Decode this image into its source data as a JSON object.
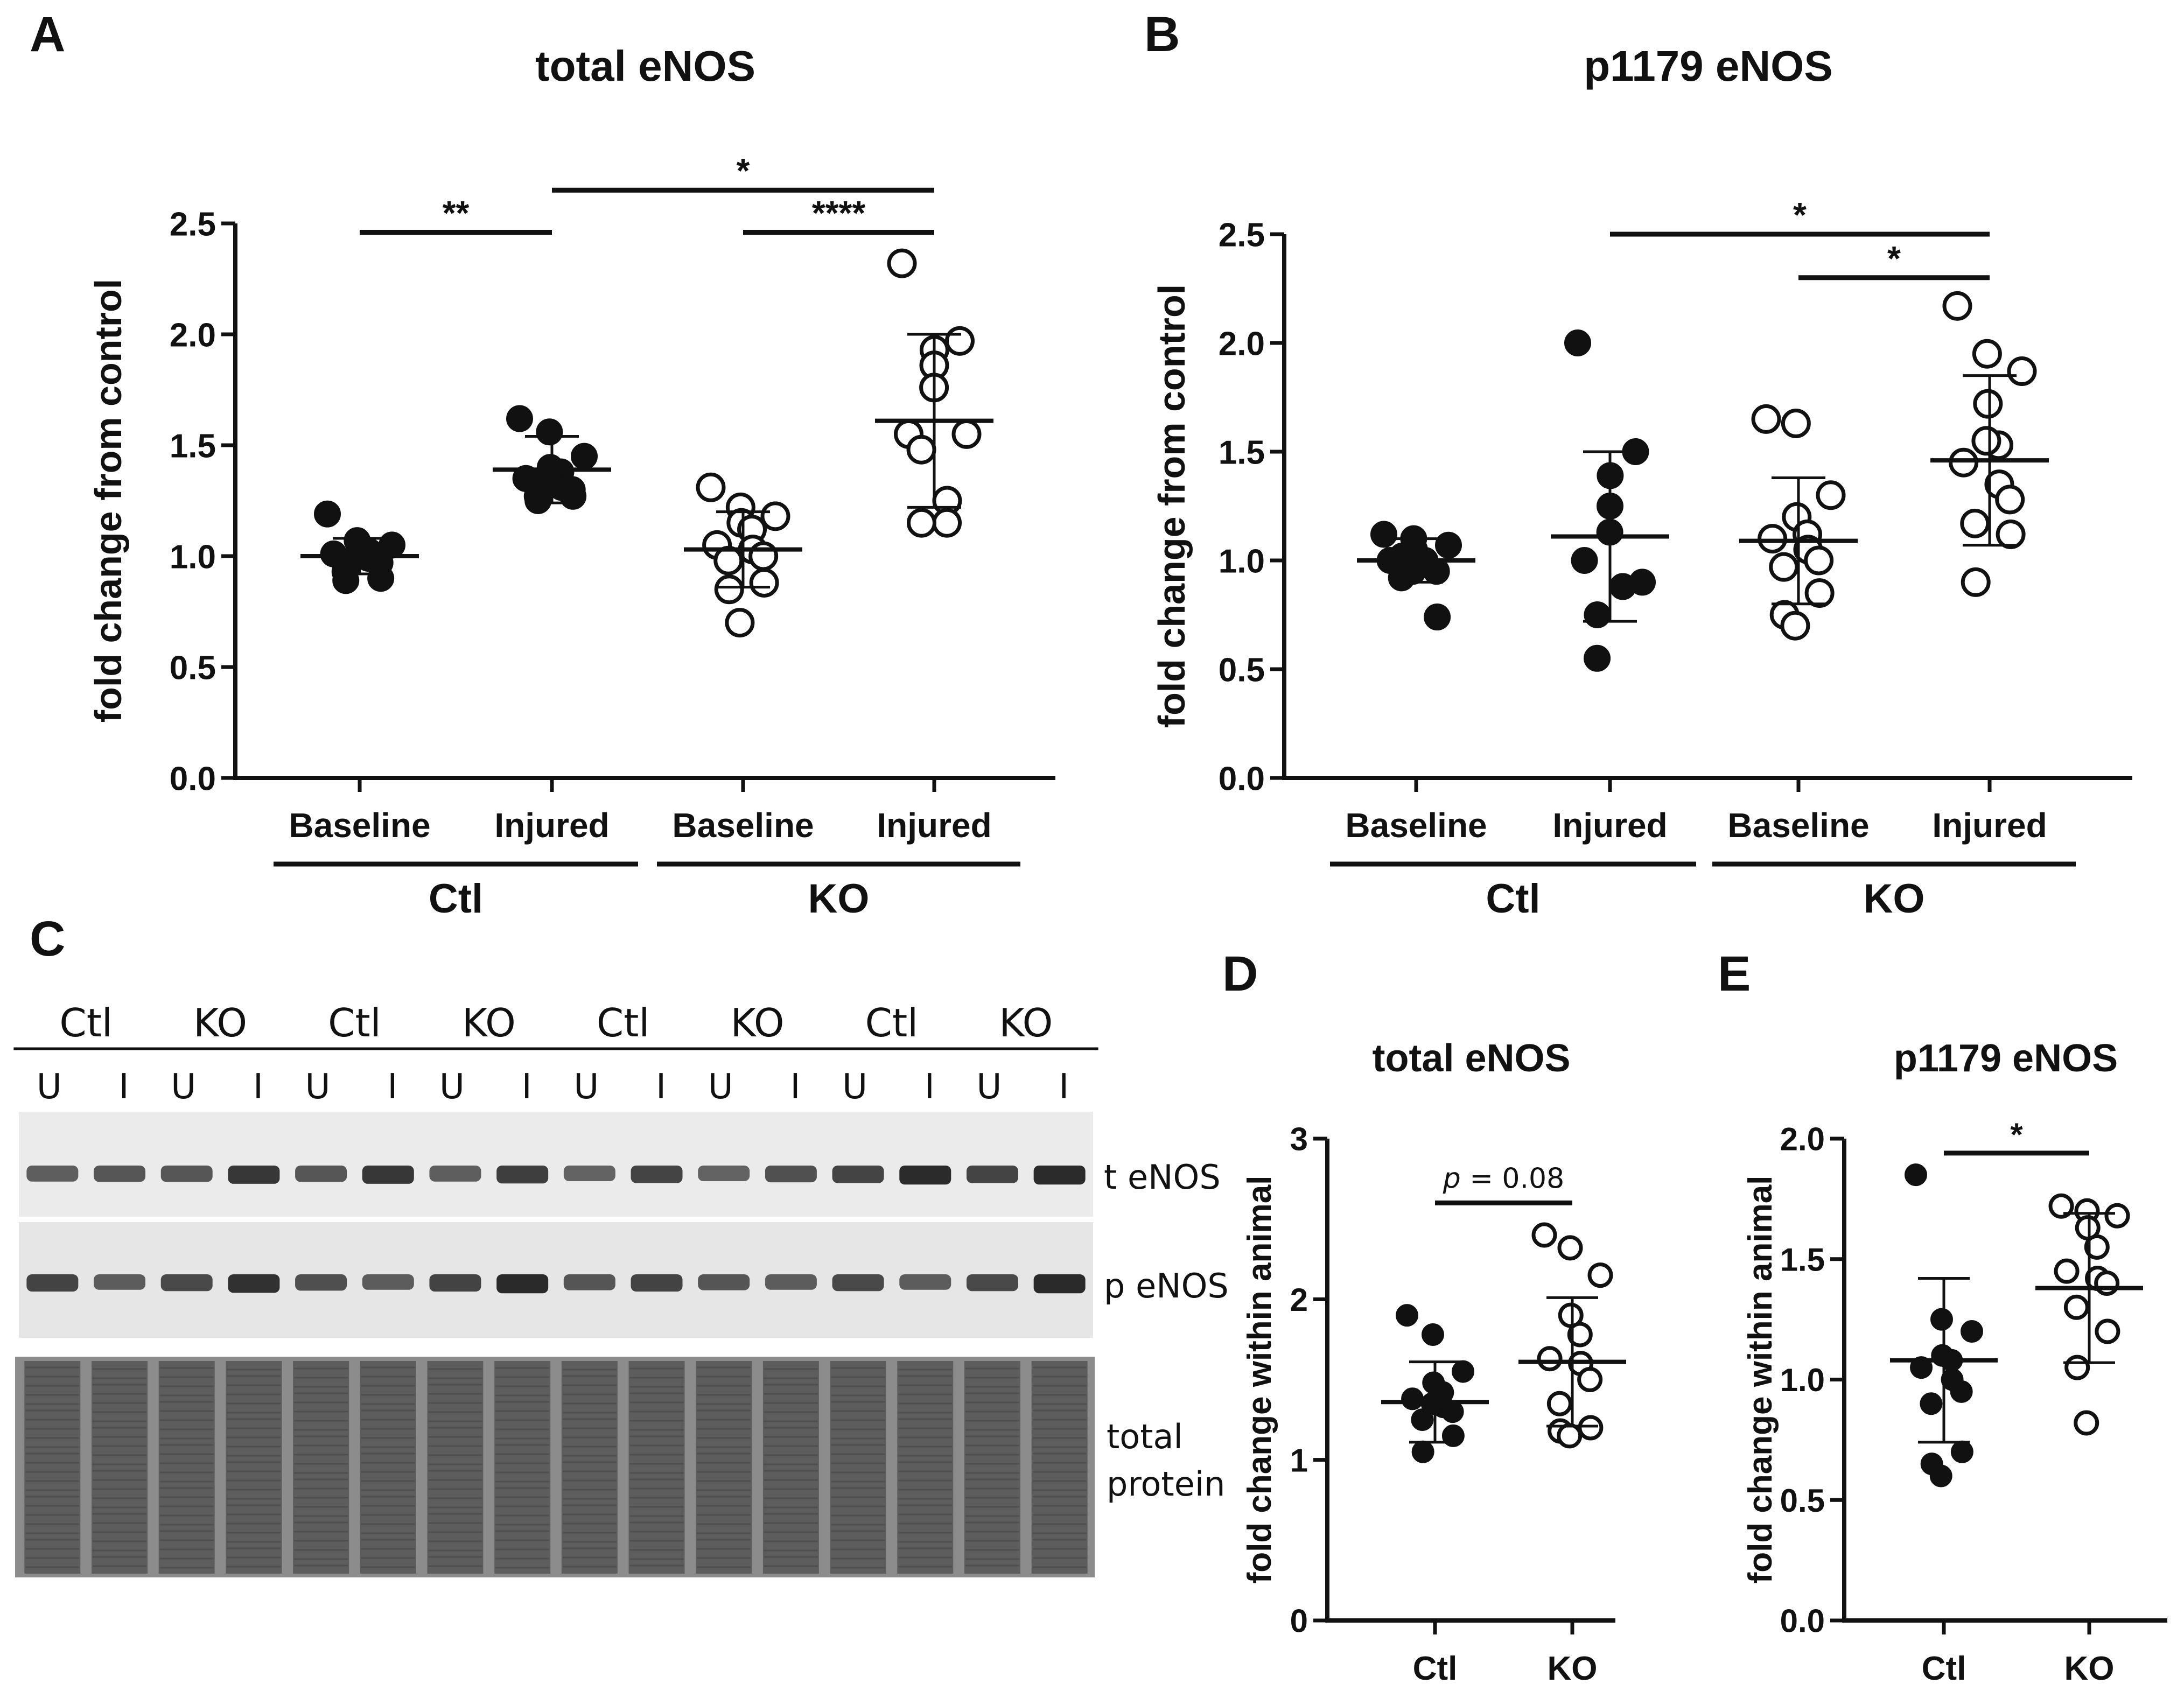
{
  "chart_data": [
    {
      "id": "A",
      "panel_label": "A",
      "type": "scatter",
      "title": "total eNOS",
      "ylabel": "fold change from control",
      "ylim": [
        0,
        2.5
      ],
      "yticks": [
        "0.0",
        "0.5",
        "1.0",
        "1.5",
        "2.0",
        "2.5"
      ],
      "categories": [
        "Baseline",
        "Injured",
        "Baseline",
        "Injured"
      ],
      "groups": [
        {
          "label": "Ctl",
          "from": 0,
          "to": 1
        },
        {
          "label": "KO",
          "from": 2,
          "to": 3
        }
      ],
      "series": [
        {
          "name": "Ctl Baseline",
          "filled": true,
          "mean": 1.0,
          "sd": 0.08,
          "values": [
            1.19,
            1.07,
            1.05,
            1.0,
            0.99,
            1.01,
            1.02,
            0.97,
            0.93,
            0.9,
            0.89,
            1.0
          ]
        },
        {
          "name": "Ctl Injured",
          "filled": true,
          "mean": 1.39,
          "sd": 0.15,
          "values": [
            1.62,
            1.56,
            1.45,
            1.4,
            1.38,
            1.35,
            1.31,
            1.3,
            1.27,
            1.27,
            1.25,
            1.35
          ]
        },
        {
          "name": "KO Baseline",
          "filled": false,
          "mean": 1.03,
          "sd": 0.17,
          "values": [
            1.31,
            1.22,
            1.18,
            1.15,
            1.12,
            1.05,
            1.03,
            1.0,
            0.98,
            0.88,
            0.85,
            0.7
          ]
        },
        {
          "name": "KO Injured",
          "filled": false,
          "mean": 1.61,
          "sd": 0.39,
          "values": [
            2.32,
            1.97,
            1.93,
            1.86,
            1.76,
            1.55,
            1.55,
            1.25,
            1.15,
            1.15,
            1.48
          ]
        }
      ],
      "significance": [
        {
          "from": 0,
          "to": 1,
          "label": "**",
          "y": 2.46
        },
        {
          "from": 1,
          "to": 3,
          "label": "*",
          "y": 2.65
        },
        {
          "from": 2,
          "to": 3,
          "label": "****",
          "y": 2.46
        }
      ]
    },
    {
      "id": "B",
      "panel_label": "B",
      "type": "scatter",
      "title": "p1179 eNOS",
      "ylabel": "fold change from control",
      "ylim": [
        0,
        2.5
      ],
      "yticks": [
        "0.0",
        "0.5",
        "1.0",
        "1.5",
        "2.0",
        "2.5"
      ],
      "categories": [
        "Baseline",
        "Injured",
        "Baseline",
        "Injured"
      ],
      "groups": [
        {
          "label": "Ctl",
          "from": 0,
          "to": 1
        },
        {
          "label": "KO",
          "from": 2,
          "to": 3
        }
      ],
      "series": [
        {
          "name": "Ctl Baseline",
          "filled": true,
          "mean": 1.0,
          "sd": 0.1,
          "values": [
            1.12,
            1.1,
            1.07,
            1.05,
            1.0,
            1.0,
            0.98,
            0.95,
            0.92,
            0.74,
            1.02,
            0.95
          ]
        },
        {
          "name": "Ctl Injured",
          "filled": true,
          "mean": 1.11,
          "sd": 0.39,
          "values": [
            2.0,
            1.5,
            1.39,
            1.25,
            1.13,
            1.0,
            0.9,
            0.88,
            0.88,
            0.75,
            0.55
          ]
        },
        {
          "name": "KO Baseline",
          "filled": false,
          "mean": 1.09,
          "sd": 0.29,
          "values": [
            1.65,
            1.63,
            1.3,
            1.2,
            1.12,
            1.1,
            1.05,
            1.0,
            0.97,
            0.85,
            0.75,
            0.7
          ]
        },
        {
          "name": "KO Injured",
          "filled": false,
          "mean": 1.46,
          "sd": 0.39,
          "values": [
            2.17,
            1.95,
            1.87,
            1.72,
            1.53,
            1.45,
            1.35,
            1.28,
            1.17,
            1.12,
            0.9,
            1.55
          ]
        }
      ],
      "significance": [
        {
          "from": 1,
          "to": 3,
          "label": "*",
          "y": 2.5
        },
        {
          "from": 2,
          "to": 3,
          "label": "*",
          "y": 2.3
        }
      ]
    },
    {
      "id": "D",
      "panel_label": "D",
      "type": "scatter",
      "title": "total eNOS",
      "ylabel": "fold change within animal",
      "ylim": [
        0,
        3
      ],
      "yticks": [
        "0",
        "1",
        "2",
        "3"
      ],
      "categories": [
        "Ctl",
        "KO"
      ],
      "groups": [],
      "series": [
        {
          "name": "Ctl",
          "filled": true,
          "mean": 1.36,
          "sd": 0.25,
          "values": [
            1.9,
            1.78,
            1.55,
            1.48,
            1.42,
            1.38,
            1.33,
            1.3,
            1.25,
            1.15,
            1.05,
            1.35
          ]
        },
        {
          "name": "KO",
          "filled": false,
          "mean": 1.61,
          "sd": 0.4,
          "values": [
            2.4,
            2.32,
            2.15,
            1.9,
            1.78,
            1.63,
            1.6,
            1.5,
            1.35,
            1.2,
            1.18,
            1.15
          ]
        }
      ],
      "significance": [
        {
          "from": 0,
          "to": 1,
          "label": "p = 0.08",
          "y": 2.6
        }
      ]
    },
    {
      "id": "E",
      "panel_label": "E",
      "type": "scatter",
      "title": "p1179 eNOS",
      "ylabel": "fold change within animal",
      "ylim": [
        0,
        2
      ],
      "yticks": [
        "0.0",
        "0.5",
        "1.0",
        "1.5",
        "2.0"
      ],
      "categories": [
        "Ctl",
        "KO"
      ],
      "groups": [],
      "series": [
        {
          "name": "Ctl",
          "filled": true,
          "mean": 1.08,
          "sd": 0.34,
          "values": [
            1.85,
            1.25,
            1.2,
            1.1,
            1.08,
            1.05,
            1.0,
            0.95,
            0.9,
            0.7,
            0.65,
            0.6
          ]
        },
        {
          "name": "KO",
          "filled": false,
          "mean": 1.38,
          "sd": 0.31,
          "values": [
            1.72,
            1.7,
            1.68,
            1.63,
            1.55,
            1.45,
            1.42,
            1.4,
            1.3,
            1.2,
            1.05,
            0.82
          ]
        }
      ],
      "significance": [
        {
          "from": 0,
          "to": 1,
          "label": "*",
          "y": 1.94
        }
      ]
    }
  ],
  "blot": {
    "panel_label": "C",
    "lane_groups": [
      "Ctl",
      "KO",
      "Ctl",
      "KO",
      "Ctl",
      "KO",
      "Ctl",
      "KO"
    ],
    "lane_sublabels": [
      "U",
      "I"
    ],
    "row_labels": [
      "t eNOS",
      "p eNOS",
      "total protein"
    ],
    "band_intensity": {
      "t eNOS": [
        0.55,
        0.6,
        0.6,
        0.85,
        0.6,
        0.85,
        0.55,
        0.8,
        0.5,
        0.75,
        0.5,
        0.65,
        0.75,
        0.95,
        0.75,
        0.95
      ],
      "p eNOS": [
        0.75,
        0.55,
        0.7,
        0.9,
        0.65,
        0.55,
        0.75,
        0.95,
        0.6,
        0.75,
        0.6,
        0.55,
        0.7,
        0.55,
        0.7,
        0.95
      ]
    }
  },
  "colors": {
    "ink": "#111111",
    "gel_bg": "#e8e8e8",
    "protein_lane": "#6a6a6a",
    "band": "#1a1a1a"
  }
}
